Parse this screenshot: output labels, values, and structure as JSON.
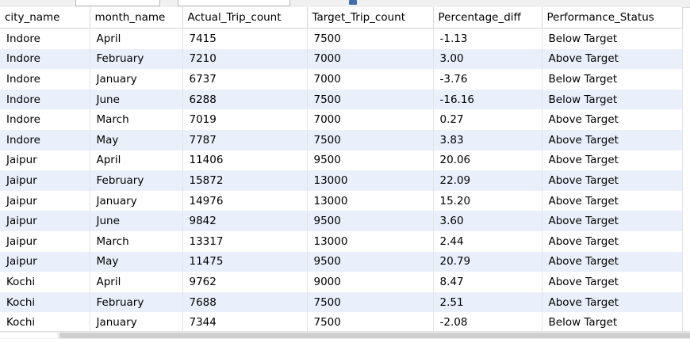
{
  "columns": [
    "city_name",
    "month_name",
    "Actual_Trip_count",
    "Target_Trip_count",
    "Percentage_diff",
    "Performance_Status"
  ],
  "rows": [
    [
      "Indore",
      "April",
      "7415",
      "7500",
      "-1.13",
      "Below Target"
    ],
    [
      "Indore",
      "February",
      "7210",
      "7000",
      "3.00",
      "Above Target"
    ],
    [
      "Indore",
      "January",
      "6737",
      "7000",
      "-3.76",
      "Below Target"
    ],
    [
      "Indore",
      "June",
      "6288",
      "7500",
      "-16.16",
      "Below Target"
    ],
    [
      "Indore",
      "March",
      "7019",
      "7000",
      "0.27",
      "Above Target"
    ],
    [
      "Indore",
      "May",
      "7787",
      "7500",
      "3.83",
      "Above Target"
    ],
    [
      "Jaipur",
      "April",
      "11406",
      "9500",
      "20.06",
      "Above Target"
    ],
    [
      "Jaipur",
      "February",
      "15872",
      "13000",
      "22.09",
      "Above Target"
    ],
    [
      "Jaipur",
      "January",
      "14976",
      "13000",
      "15.20",
      "Above Target"
    ],
    [
      "Jaipur",
      "June",
      "9842",
      "9500",
      "3.60",
      "Above Target"
    ],
    [
      "Jaipur",
      "March",
      "13317",
      "13000",
      "2.44",
      "Above Target"
    ],
    [
      "Jaipur",
      "May",
      "11475",
      "9500",
      "20.79",
      "Above Target"
    ],
    [
      "Kochi",
      "April",
      "9762",
      "9000",
      "8.47",
      "Above Target"
    ],
    [
      "Kochi",
      "February",
      "7688",
      "7500",
      "2.51",
      "Above Target"
    ],
    [
      "Kochi",
      "January",
      "7344",
      "7500",
      "-2.08",
      "Below Target"
    ]
  ],
  "colors": {
    "row_alt": "#e9f0fb",
    "row_base": "#ffffff",
    "grid_line": "#d6d6d6"
  }
}
